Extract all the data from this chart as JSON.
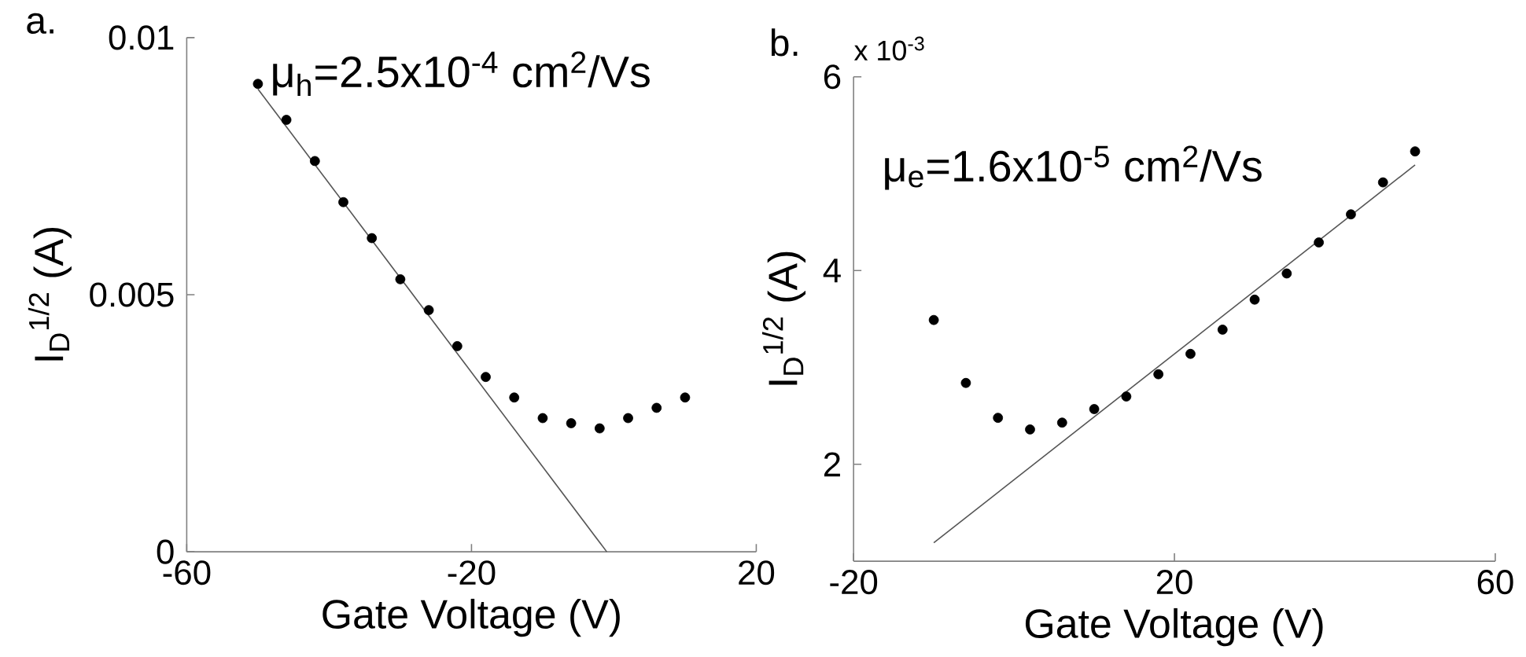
{
  "chart_data": [
    {
      "type": "scatter",
      "xlabel": "Gate Voltage (V)",
      "ylabel": "I$_{D}$$^{1/2}$ (A)",
      "xlim": [
        -60,
        20
      ],
      "ylim": [
        0,
        0.01
      ],
      "xticks": [
        -60,
        -20,
        20
      ],
      "yticks": [
        0,
        0.005,
        0.01
      ],
      "marker": "circle",
      "annotations": [
        "a.",
        "μ$_{h}$=2.5x10$^{-4}$ cm$^{2}$/Vs"
      ],
      "series": [
        {
          "color": "#000000",
          "x": [
            -50,
            -46,
            -42,
            -38,
            -34,
            -30,
            -26,
            -22,
            -18,
            -14,
            -10,
            -6,
            -2,
            2,
            6,
            10
          ],
          "values": [
            0.0091,
            0.0084,
            0.0076,
            0.0068,
            0.0061,
            0.0053,
            0.0047,
            0.004,
            0.0034,
            0.003,
            0.0026,
            0.0025,
            0.0024,
            0.0026,
            0.0028,
            0.003
          ]
        },
        {
          "type": "line",
          "marker": "none",
          "color": "#555555",
          "x": [
            -50,
            -1
          ],
          "values": [
            0.009,
            0
          ]
        }
      ]
    },
    {
      "type": "scatter",
      "xlabel": "Gate Voltage (V)",
      "ylabel": "I$_{D}$$^{1/2}$ (A)",
      "xlim": [
        -20,
        60
      ],
      "ylim": [
        1,
        6
      ],
      "xticks": [
        -20,
        20,
        60
      ],
      "yticks": [
        2,
        4,
        6
      ],
      "marker": "circle",
      "annotations": [
        "b.",
        "x 10$^{-3}$",
        "μ$_{e}$=1.6x10$^{-5}$ cm$^{2}$/Vs"
      ],
      "series": [
        {
          "color": "#000000",
          "x": [
            -10,
            -6,
            -2,
            2,
            6,
            10,
            14,
            18,
            22,
            26,
            30,
            34,
            38,
            42,
            46,
            50
          ],
          "values": [
            3.49,
            2.84,
            2.48,
            2.36,
            2.43,
            2.57,
            2.7,
            2.93,
            3.14,
            3.39,
            3.7,
            3.97,
            4.29,
            4.58,
            4.91,
            5.23
          ]
        },
        {
          "type": "line",
          "marker": "none",
          "color": "#555555",
          "x": [
            -10,
            50
          ],
          "values": [
            1.19,
            5.09
          ]
        }
      ]
    }
  ]
}
